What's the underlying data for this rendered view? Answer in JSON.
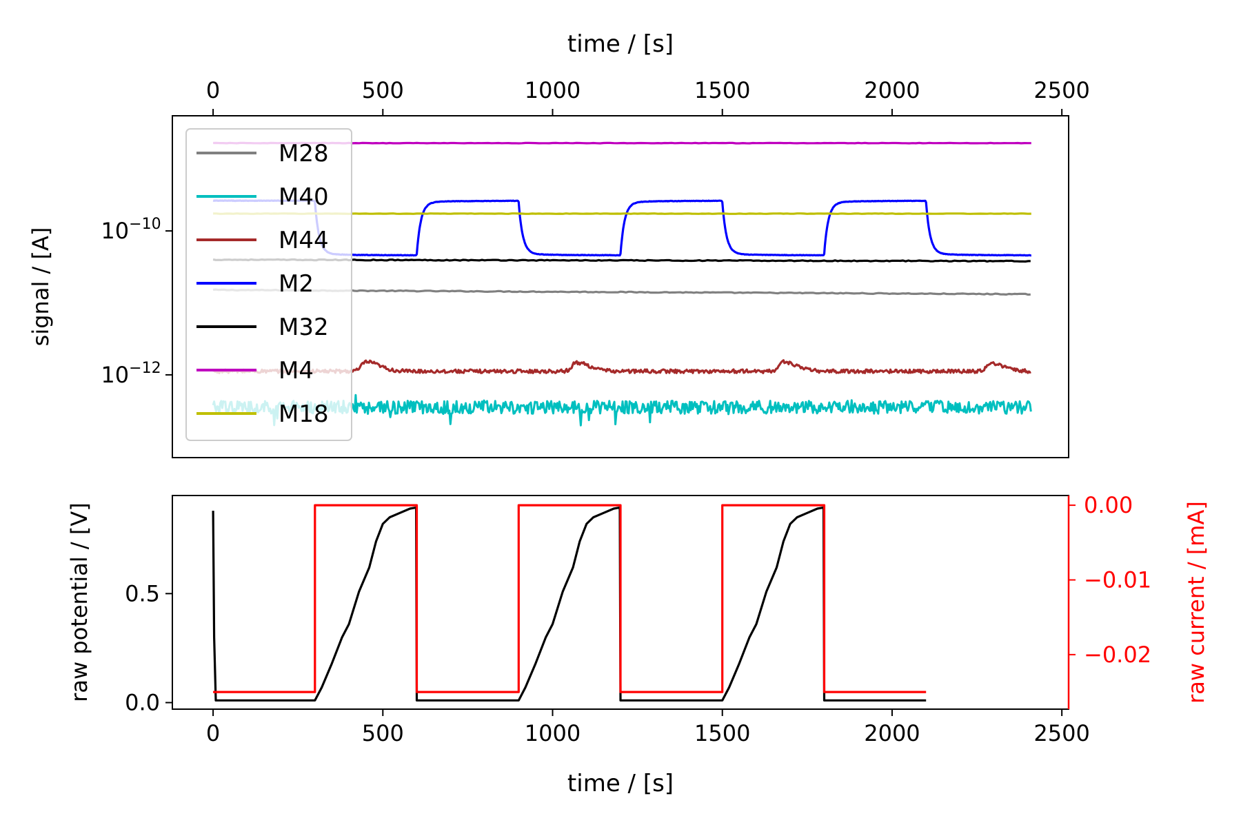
{
  "chart_data": [
    {
      "type": "line",
      "name": "mass-spec signals",
      "xlabel": "time / [s]",
      "ylabel": "signal / [A]",
      "xlim": [
        -120,
        2520
      ],
      "ylim_log10": [
        -13.15,
        -8.4
      ],
      "yscale": "log",
      "x_ticks": [
        0,
        500,
        1000,
        1500,
        2000,
        2500
      ],
      "x_tick_labels": [
        "0",
        "500",
        "1000",
        "1500",
        "2000",
        "2500"
      ],
      "x_axis_position": "top",
      "y_ticks_log10": [
        -10,
        -12
      ],
      "y_tick_labels": [
        {
          "base": "10",
          "exp": "−10"
        },
        {
          "base": "10",
          "exp": "−12"
        }
      ],
      "legend_position": "upper left",
      "grid": false,
      "series": [
        {
          "name": "M28",
          "color": "#808080",
          "kind": "drift",
          "x": [
            0,
            2410
          ],
          "log10_start": -10.82,
          "log10_end": -10.88
        },
        {
          "name": "M40",
          "color": "#00bfbf",
          "kind": "noise",
          "x": [
            0,
            2410
          ],
          "log10_mean": -12.45,
          "noise_amplitude": 0.09
        },
        {
          "name": "M44",
          "color": "#a52a2a",
          "kind": "bumps",
          "x": [
            0,
            2410
          ],
          "log10_base": -11.95,
          "bump_centers": [
            450,
            1070,
            1680,
            2290
          ],
          "bump_heights": [
            0.13,
            0.12,
            0.13,
            0.11
          ]
        },
        {
          "name": "M2",
          "color": "#0000ff",
          "kind": "square",
          "x": [
            0,
            2410
          ],
          "log10_low": -10.32,
          "log10_high": -9.6,
          "high_intervals": [
            [
              0,
              300
            ],
            [
              600,
              900
            ],
            [
              1200,
              1500
            ],
            [
              1800,
              2100
            ]
          ]
        },
        {
          "name": "M32",
          "color": "#000000",
          "kind": "drift",
          "x": [
            0,
            2410
          ],
          "log10_start": -10.4,
          "log10_end": -10.42
        },
        {
          "name": "M4",
          "color": "#bf00bf",
          "kind": "flat",
          "x": [
            0,
            2410
          ],
          "log10_value": -8.78
        },
        {
          "name": "M18",
          "color": "#bfbf00",
          "kind": "flat",
          "x": [
            0,
            2410
          ],
          "log10_value": -9.76
        }
      ]
    },
    {
      "type": "line",
      "name": "electrochemistry",
      "xlabel": "time / [s]",
      "ylabel": "raw potential / [V]",
      "y2label": "raw current / [mA]",
      "xlim": [
        -120,
        2520
      ],
      "ylim": [
        -0.03,
        0.95
      ],
      "y2lim": [
        -0.0273,
        0.0013
      ],
      "x_ticks": [
        0,
        500,
        1000,
        1500,
        2000,
        2500
      ],
      "x_tick_labels": [
        "0",
        "500",
        "1000",
        "1500",
        "2000",
        "2500"
      ],
      "y_ticks": [
        0.0,
        0.5
      ],
      "y_tick_labels": [
        "0.0",
        "0.5"
      ],
      "y2_ticks": [
        0.0,
        -0.01,
        -0.02
      ],
      "y2_tick_labels": [
        "0.00",
        "−0.01",
        "−0.02"
      ],
      "grid": false,
      "series": [
        {
          "name": "potential",
          "axis": "left",
          "color": "#000000",
          "x": [
            0,
            3,
            8,
            295,
            300,
            320,
            350,
            380,
            400,
            430,
            460,
            480,
            500,
            520,
            550,
            580,
            598,
            600,
            602,
            895,
            900,
            920,
            950,
            980,
            1000,
            1030,
            1060,
            1080,
            1100,
            1120,
            1150,
            1180,
            1198,
            1200,
            1202,
            1495,
            1500,
            1520,
            1550,
            1580,
            1600,
            1630,
            1660,
            1680,
            1700,
            1720,
            1750,
            1780,
            1798,
            1800,
            1802,
            2100
          ],
          "y": [
            0.88,
            0.3,
            0.01,
            0.01,
            0.01,
            0.07,
            0.18,
            0.3,
            0.36,
            0.51,
            0.62,
            0.74,
            0.82,
            0.85,
            0.87,
            0.89,
            0.895,
            0.01,
            0.01,
            0.01,
            0.01,
            0.07,
            0.18,
            0.3,
            0.36,
            0.51,
            0.62,
            0.74,
            0.82,
            0.85,
            0.87,
            0.89,
            0.895,
            0.01,
            0.01,
            0.01,
            0.01,
            0.07,
            0.18,
            0.3,
            0.36,
            0.51,
            0.62,
            0.74,
            0.82,
            0.85,
            0.87,
            0.89,
            0.895,
            0.01,
            0.01,
            0.01
          ]
        },
        {
          "name": "current",
          "axis": "right",
          "color": "#ff0000",
          "x": [
            0,
            300,
            300,
            600,
            600,
            900,
            900,
            1200,
            1200,
            1500,
            1500,
            1800,
            1800,
            2100
          ],
          "y": [
            -0.025,
            -0.025,
            0.0,
            0.0,
            -0.025,
            -0.025,
            0.0,
            0.0,
            -0.025,
            -0.025,
            0.0,
            0.0,
            -0.025,
            -0.025
          ]
        }
      ]
    }
  ]
}
